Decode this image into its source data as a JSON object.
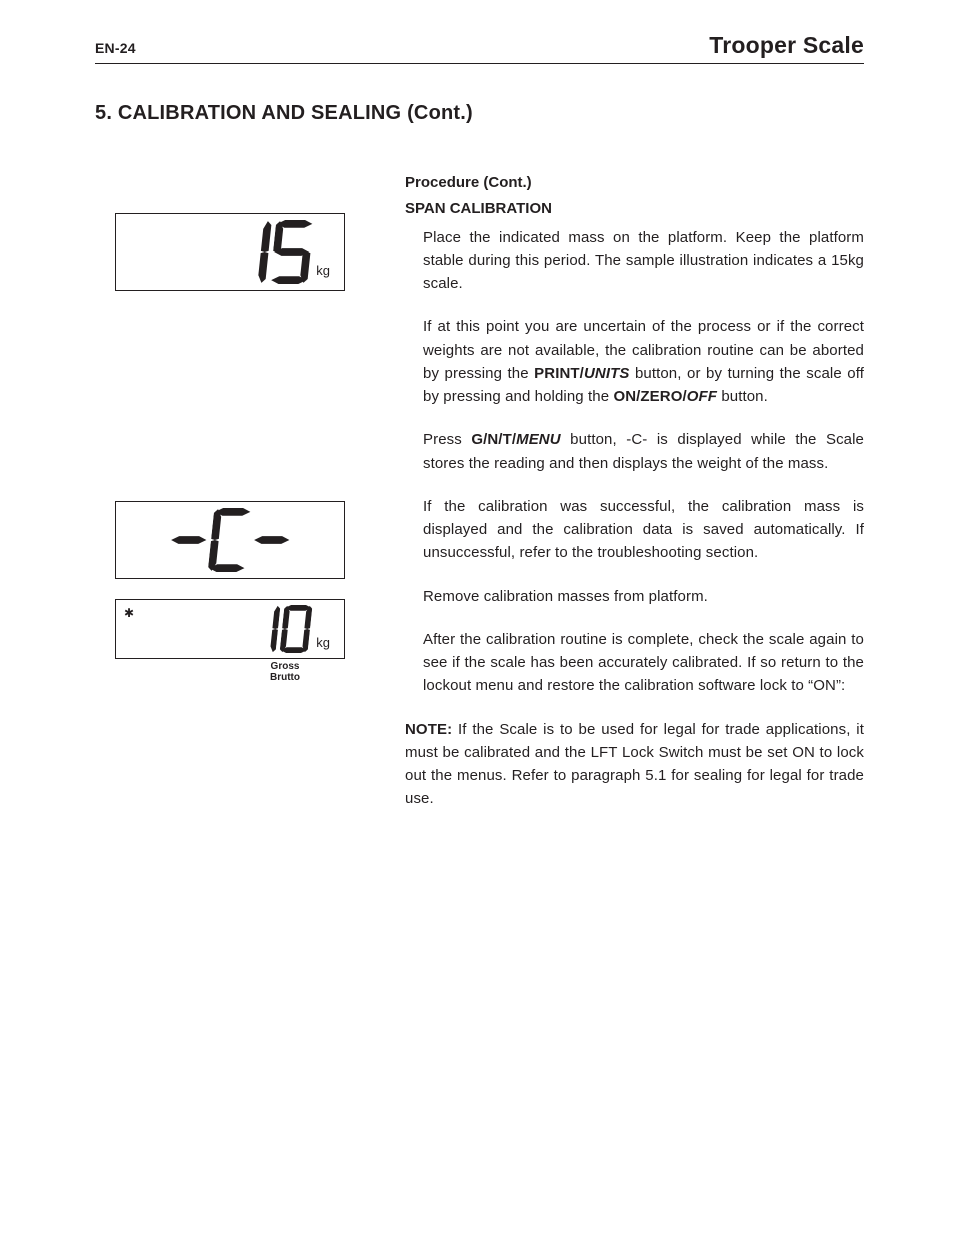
{
  "header": {
    "page_code": "EN-24",
    "doc_title": "Trooper Scale"
  },
  "section_title": "5. CALIBRATION AND SEALING (Cont.)",
  "right": {
    "sub1": "Procedure (Cont.)",
    "sub2": "SPAN CALIBRATION",
    "p1": "Place the indicated mass on the platform. Keep the platform stable during this period. The sample illustration indicates a 15kg scale.",
    "p2a": "If at this point you are uncertain of the process or if the correct weights are not available, the calibration routine can be aborted by pressing the ",
    "btn_print": "PRINT/",
    "btn_units": "UNITS",
    "p2b": " button, or by turning the scale off by pressing and holding the ",
    "btn_on": "ON/ZERO/",
    "btn_off": "OFF",
    "p2c": " button.",
    "p3a": "Press ",
    "btn_gnt": "G/N/T/",
    "btn_menu": "MENU",
    "p3b": " button, -C- is displayed while the Scale stores the reading and then displays the weight of the mass.",
    "p4": "If the calibration was successful, the calibration mass is displayed and the calibration data is saved automatically. If unsuccessful, refer to the troubleshooting section.",
    "p5": "Remove calibration masses from platform.",
    "p6": "After the calibration routine is complete, check the scale again to see if the scale has been accurately calibrated. If so return to the lockout menu and restore the calibration software lock to “ON”:",
    "note_label": "NOTE:",
    "note_body": " If the Scale is to be used for legal for trade applications, it must be calibrated and the LFT Lock Switch must be set ON to lock out the menus. Refer to paragraph 5.1 for sealing for legal for trade use."
  },
  "displays": {
    "d1": {
      "value": "15",
      "unit": "kg",
      "show_star": false,
      "show_unit": true,
      "caption": ""
    },
    "d2": {
      "value": "-C-",
      "unit": "",
      "show_star": false,
      "show_unit": false,
      "caption": ""
    },
    "d3": {
      "value": "10",
      "unit": "kg",
      "show_star": true,
      "show_unit": true,
      "caption_l1": "Gross",
      "caption_l2": "Brutto"
    }
  },
  "seven_seg": {
    "color": "#231f20",
    "glyph_width": 34,
    "glyph_height": 58,
    "skew_deg": -6,
    "stroke_width_thin": 2
  }
}
